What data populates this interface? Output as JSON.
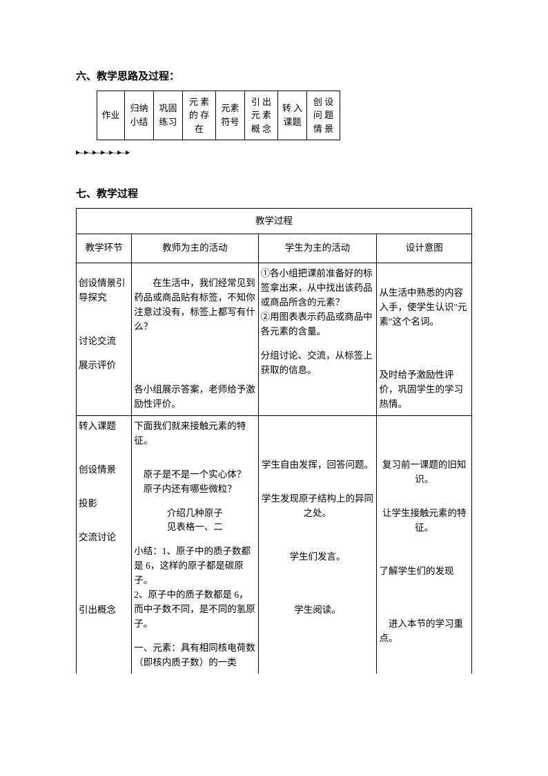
{
  "section6": {
    "heading": "六、教学思路及过程：",
    "flow": [
      "作业",
      "归纳\n小结",
      "巩固练习",
      "元 素的 存在",
      "元素符号",
      "引 出元 素概 念",
      "转 入课题",
      "创 设问 题情 景"
    ],
    "flow_widths": [
      "40px",
      "42px",
      "42px",
      "48px",
      "42px",
      "48px",
      "42px",
      "48px"
    ],
    "arrow_glyph": "▸—▸—▸—▸—▸—▸—▸"
  },
  "section7": {
    "heading": "七、教学过程",
    "table_title": "教学过程",
    "headers": [
      "教学环节",
      "教师为主的活动",
      "学生为主的活动",
      "设计意图"
    ],
    "rows": [
      {
        "phase_a": "创设情景引导探究",
        "phase_b": "讨论交流",
        "phase_c": "展示评价",
        "teacher_a": "　　在生活中，我们经常见到药品或商品贴有标签，不知你注意过没有，标签上都写有什么？",
        "teacher_c": "各小组展示答案，老师给予激励性评价。",
        "student_a": "①各小组把课前准备好的标签拿出来，从中找出该药品或商品所含的元素？\n②用图表表示药品或商品中各元素的含量。",
        "student_b": "分组讨论、交流，从标签上获取的信息。",
        "intent_a": "从生活中熟悉的内容入手，使学生认识\"元素\"这个名词。",
        "intent_c": "及时给予激励性评价，巩固学生的学习热情。"
      },
      {
        "phase_a": "转入课题",
        "phase_b": "创设情景",
        "phase_c": "投影",
        "phase_d": "交流讨论",
        "phase_e": "引出概念",
        "teacher_a": "下面我们就来接触元素的特征。",
        "teacher_b": "　原子是不是一个实心体？\n　原子内还有哪些微粒？",
        "teacher_c": "介绍几种原子\n见表格一、二",
        "teacher_d": "小结：1、原子中的质子数都是 6，这样的原子都是碳原子。\n2、原子中的质子数都是 6，而中子数不同，是不同的氢原子。",
        "teacher_e": "一、元素：具有相同核电荷数（即核内质子数）的一类",
        "student_b": "学生自由发挥，回答问题。",
        "student_c": "学生发现原子结构上的异同之处。",
        "student_d": "学生们发言。",
        "student_e": "学生阅读。",
        "intent_b": "复习前一课题的旧知识。",
        "intent_c": "让学生接触元素的特征。",
        "intent_d": "了解学生们的发现",
        "intent_e": "　进入本节的学习重点。"
      }
    ]
  }
}
